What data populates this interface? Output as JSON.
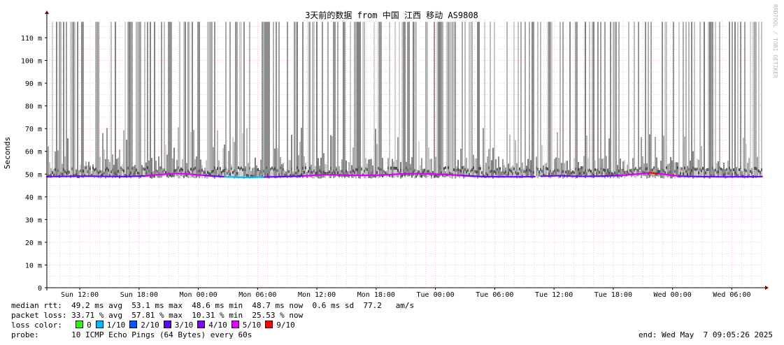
{
  "chart_data": {
    "type": "area",
    "title": "3天前的数据 from 中国 江西 移动 AS9808",
    "ylabel": "Seconds",
    "yticks": [
      "0",
      "10 m",
      "20 m",
      "30 m",
      "40 m",
      "50 m",
      "60 m",
      "70 m",
      "80 m",
      "90 m",
      "100 m",
      "110 m"
    ],
    "ylim": [
      0,
      0.118
    ],
    "xticks": [
      "Sun 12:00",
      "Sun 18:00",
      "Mon 00:00",
      "Mon 06:00",
      "Mon 12:00",
      "Mon 18:00",
      "Tue 00:00",
      "Tue 06:00",
      "Tue 12:00",
      "Tue 18:00",
      "Wed 00:00",
      "Wed 06:00"
    ],
    "x_range_hours": [
      "Sun 08:40",
      "Wed 09:05"
    ],
    "grid": true,
    "median_rtt_ms": [
      [
        0,
        48.9
      ],
      [
        2,
        49.0
      ],
      [
        4,
        49.1
      ],
      [
        6,
        49.0
      ],
      [
        8,
        48.9
      ],
      [
        10,
        49.2
      ],
      [
        12,
        50.0
      ],
      [
        13,
        50.3
      ],
      [
        14,
        50.1
      ],
      [
        15,
        49.8
      ],
      [
        16,
        49.4
      ],
      [
        18,
        48.8
      ],
      [
        20,
        48.6
      ],
      [
        22,
        48.7
      ],
      [
        24,
        48.9
      ],
      [
        26,
        49.2
      ],
      [
        28,
        49.7
      ],
      [
        30,
        49.6
      ],
      [
        32,
        49.4
      ],
      [
        34,
        49.6
      ],
      [
        36,
        50.1
      ],
      [
        38,
        50.2
      ],
      [
        40,
        49.9
      ],
      [
        42,
        49.4
      ],
      [
        44,
        48.9
      ],
      [
        46,
        48.8
      ],
      [
        48,
        48.8
      ],
      [
        49.4,
        48.9
      ],
      [
        49.7,
        null
      ],
      [
        50,
        49.1
      ],
      [
        52,
        49.3
      ],
      [
        54,
        49.0
      ],
      [
        56,
        49.1
      ],
      [
        58,
        49.4
      ],
      [
        60,
        50.1
      ],
      [
        61,
        50.6
      ],
      [
        62,
        50.2
      ],
      [
        63,
        49.6
      ],
      [
        64,
        49.1
      ],
      [
        66,
        48.9
      ],
      [
        68,
        48.8
      ],
      [
        70,
        48.8
      ],
      [
        72.4,
        48.9
      ]
    ],
    "loss_colors": {
      "0": "#26ff00",
      "1/10": "#00b8ff",
      "2/10": "#0059ff",
      "3/10": "#5e00ff",
      "4/10": "#7e00ff",
      "5/10": "#dd00ff",
      "9/10": "#ff0000"
    },
    "colors": {
      "axis": "#000000",
      "grid_minor": "#e0b4b4",
      "grid_major": "#ff9a9a",
      "arrow": "#800000",
      "smoke": "#9a9a9a"
    }
  },
  "legend": {
    "median_label": "median rtt:",
    "median_values": "49.2 ms avg  53.1 ms max  48.6 ms min  48.7 ms now  0.6 ms sd  77.2   am/s",
    "loss_label": "packet loss:",
    "loss_values": "33.71 % avg  57.81 % max  10.31 % min  25.53 % now",
    "color_label": "loss color:",
    "color_items": [
      {
        "label": "0",
        "color": "#26ff00"
      },
      {
        "label": "1/10",
        "color": "#00b8ff"
      },
      {
        "label": "2/10",
        "color": "#0059ff"
      },
      {
        "label": "3/10",
        "color": "#5e00ff"
      },
      {
        "label": "4/10",
        "color": "#7e00ff"
      },
      {
        "label": "5/10",
        "color": "#dd00ff"
      },
      {
        "label": "9/10",
        "color": "#ff0000"
      }
    ],
    "probe_label": "probe:",
    "probe_value": "10 ICMP Echo Pings (64 Bytes) every 60s",
    "end_text": "end: Wed May  7 09:05:26 2025"
  },
  "watermark": "RRDTOOL / TOBI OETIKER"
}
